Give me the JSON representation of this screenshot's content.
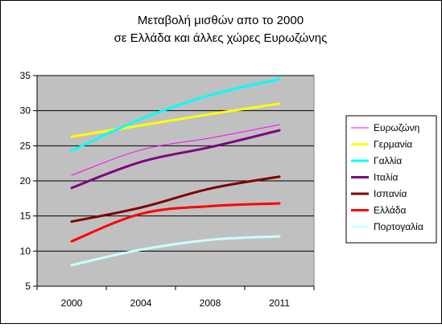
{
  "chart_data": {
    "type": "line",
    "title_lines": [
      "Μεταβολή μισθών απο το 2000",
      "σε Ελλάδα και άλλες χώρες Ευρωζώνης"
    ],
    "x": [
      "2000",
      "2004",
      "2008",
      "2011"
    ],
    "ylim": [
      5,
      35
    ],
    "yticks": [
      5,
      10,
      15,
      20,
      25,
      30,
      35
    ],
    "grid": true,
    "legend": "right",
    "series": [
      {
        "name": "Ευρωζώνη",
        "color": "#ff00ff",
        "width": 1,
        "values": [
          20.8,
          24.4,
          26.1,
          28.0
        ]
      },
      {
        "name": "Γερμανία",
        "color": "#ffff00",
        "width": 3,
        "values": [
          26.3,
          27.9,
          29.5,
          31.0
        ]
      },
      {
        "name": "Γαλλία",
        "color": "#00ffff",
        "width": 3,
        "values": [
          24.3,
          28.8,
          32.2,
          34.5
        ]
      },
      {
        "name": "Ιταλία",
        "color": "#800080",
        "width": 3,
        "values": [
          19.0,
          22.7,
          24.8,
          27.2
        ]
      },
      {
        "name": "Ισπανία",
        "color": "#800000",
        "width": 3,
        "values": [
          14.2,
          16.2,
          18.9,
          20.6
        ]
      },
      {
        "name": "Ελλάδα",
        "color": "#ff0000",
        "width": 3,
        "values": [
          11.4,
          15.3,
          16.4,
          16.8
        ]
      },
      {
        "name": "Πορτογαλία",
        "color": "#ccffff",
        "width": 3,
        "values": [
          8.0,
          10.2,
          11.6,
          12.1
        ]
      }
    ]
  }
}
